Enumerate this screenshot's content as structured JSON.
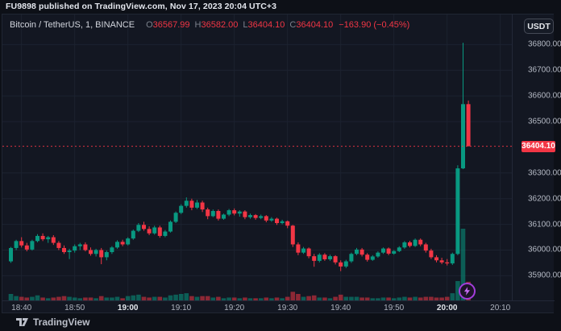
{
  "header": {
    "published_line": "FU9898 published on TradingView.com, Nov 17, 2023 20:04 UTC+3"
  },
  "chart": {
    "legend": {
      "symbol": "Bitcoin / TetherUS, 1, BINANCE",
      "ohlc": [
        {
          "k": "O",
          "v": "36567.99"
        },
        {
          "k": "H",
          "v": "36582.00"
        },
        {
          "k": "L",
          "v": "36404.10"
        },
        {
          "k": "C",
          "v": "36404.10"
        }
      ],
      "change": "−163.90 (−0.45%)"
    },
    "currency_button": "USDT",
    "last_price_label": "36404.10",
    "watermark": "TradingView",
    "icons": {
      "flash_marker": "lightning-bolt",
      "logo": "tradingview-logo"
    },
    "colors": {
      "up": "#089981",
      "down": "#f23645",
      "vol_up": "rgba(8,153,129,0.55)",
      "vol_down": "rgba(242,54,69,0.55)",
      "grid": "#1c2230",
      "price_line": "#f23645",
      "label_bg": "#f23645",
      "accent_purple": "#a33ddb"
    }
  },
  "chart_data": {
    "type": "candlestick",
    "title": "Bitcoin / TetherUS, 1, BINANCE",
    "interval": "1 minute",
    "ylim": [
      35804,
      36917
    ],
    "y_ticks": [
      {
        "value": 36800,
        "label": "36800.00"
      },
      {
        "value": 36700,
        "label": "36700.00"
      },
      {
        "value": 36600,
        "label": "36600.00"
      },
      {
        "value": 36500,
        "label": "36500.00"
      },
      {
        "value": 36300,
        "label": "36300.00"
      },
      {
        "value": 36200,
        "label": "36200.00"
      },
      {
        "value": 36100,
        "label": "36100.00"
      },
      {
        "value": 36000,
        "label": "36000.00"
      },
      {
        "value": 35900,
        "label": "35900.00"
      }
    ],
    "x_ticks": [
      {
        "label": "18:40",
        "bold": false
      },
      {
        "label": "18:50",
        "bold": false
      },
      {
        "label": "19:00",
        "bold": true
      },
      {
        "label": "19:10",
        "bold": false
      },
      {
        "label": "19:20",
        "bold": false
      },
      {
        "label": "19:30",
        "bold": false
      },
      {
        "label": "19:40",
        "bold": false
      },
      {
        "label": "19:50",
        "bold": false
      },
      {
        "label": "20:00",
        "bold": true
      },
      {
        "label": "20:10",
        "bold": false
      }
    ],
    "price_line": 36404.1,
    "volume_unit": "relative 0-100",
    "candles": [
      [
        "18:38",
        35956,
        36012,
        35950,
        36008,
        9
      ],
      [
        "18:39",
        36008,
        36040,
        36000,
        36035,
        6
      ],
      [
        "18:40",
        36035,
        36050,
        36010,
        36018,
        5
      ],
      [
        "18:41",
        36018,
        36028,
        35995,
        36002,
        4
      ],
      [
        "18:42",
        36002,
        36040,
        35998,
        36035,
        5
      ],
      [
        "18:43",
        36035,
        36062,
        36030,
        36055,
        7
      ],
      [
        "18:44",
        36055,
        36065,
        36035,
        36042,
        4
      ],
      [
        "18:45",
        36042,
        36055,
        36028,
        36050,
        3
      ],
      [
        "18:46",
        36050,
        36058,
        36020,
        36028,
        4
      ],
      [
        "18:47",
        36028,
        36035,
        36000,
        36008,
        5
      ],
      [
        "18:48",
        36008,
        36018,
        35985,
        35992,
        6
      ],
      [
        "18:49",
        35992,
        36005,
        35965,
        35998,
        5
      ],
      [
        "18:50",
        35998,
        36022,
        35990,
        36015,
        4
      ],
      [
        "18:51",
        36015,
        36028,
        36000,
        36022,
        3
      ],
      [
        "18:52",
        36022,
        36030,
        35995,
        36000,
        4
      ],
      [
        "18:53",
        36000,
        36010,
        35978,
        35985,
        4
      ],
      [
        "18:54",
        35985,
        36005,
        35975,
        36000,
        3
      ],
      [
        "18:55",
        36000,
        36008,
        35945,
        35972,
        6
      ],
      [
        "18:56",
        35972,
        35998,
        35960,
        35992,
        4
      ],
      [
        "18:57",
        35992,
        36015,
        35985,
        36010,
        4
      ],
      [
        "18:58",
        36010,
        36038,
        36005,
        36032,
        5
      ],
      [
        "18:59",
        36032,
        36040,
        36015,
        36022,
        3
      ],
      [
        "19:00",
        36022,
        36050,
        36018,
        36045,
        6
      ],
      [
        "19:01",
        36045,
        36080,
        36040,
        36075,
        7
      ],
      [
        "19:02",
        36075,
        36105,
        36070,
        36098,
        8
      ],
      [
        "19:03",
        36098,
        36110,
        36075,
        36082,
        5
      ],
      [
        "19:04",
        36082,
        36092,
        36058,
        36065,
        4
      ],
      [
        "19:05",
        36065,
        36095,
        36060,
        36088,
        5
      ],
      [
        "19:06",
        36088,
        36095,
        36048,
        36055,
        5
      ],
      [
        "19:07",
        36055,
        36078,
        36050,
        36072,
        4
      ],
      [
        "19:08",
        36072,
        36115,
        36068,
        36110,
        7
      ],
      [
        "19:09",
        36110,
        36150,
        36105,
        36145,
        8
      ],
      [
        "19:10",
        36145,
        36178,
        36140,
        36172,
        9
      ],
      [
        "19:11",
        36172,
        36205,
        36165,
        36192,
        10
      ],
      [
        "19:12",
        36192,
        36200,
        36155,
        36165,
        6
      ],
      [
        "19:13",
        36165,
        36195,
        36160,
        36185,
        5
      ],
      [
        "19:14",
        36185,
        36192,
        36148,
        36158,
        6
      ],
      [
        "19:15",
        36158,
        36165,
        36120,
        36132,
        6
      ],
      [
        "19:16",
        36132,
        36158,
        36128,
        36152,
        4
      ],
      [
        "19:17",
        36152,
        36158,
        36115,
        36122,
        5
      ],
      [
        "19:18",
        36122,
        36142,
        36118,
        36138,
        3
      ],
      [
        "19:19",
        36138,
        36160,
        36132,
        36155,
        4
      ],
      [
        "19:20",
        36155,
        36162,
        36135,
        36142,
        4
      ],
      [
        "19:21",
        36142,
        36155,
        36130,
        36150,
        3
      ],
      [
        "19:22",
        36150,
        36155,
        36120,
        36128,
        4
      ],
      [
        "19:23",
        36128,
        36142,
        36122,
        36136,
        3
      ],
      [
        "19:24",
        36136,
        36140,
        36118,
        36125,
        3
      ],
      [
        "19:25",
        36125,
        36138,
        36120,
        36132,
        3
      ],
      [
        "19:26",
        36132,
        36136,
        36108,
        36115,
        4
      ],
      [
        "19:27",
        36115,
        36128,
        36110,
        36122,
        3
      ],
      [
        "19:28",
        36122,
        36126,
        36098,
        36105,
        4
      ],
      [
        "19:29",
        36105,
        36118,
        36100,
        36112,
        3
      ],
      [
        "19:30",
        36112,
        36115,
        36085,
        36095,
        5
      ],
      [
        "19:31",
        36095,
        36098,
        36012,
        36022,
        12
      ],
      [
        "19:32",
        36022,
        36030,
        35980,
        35990,
        9
      ],
      [
        "19:33",
        35990,
        36012,
        35985,
        36006,
        5
      ],
      [
        "19:34",
        36006,
        36010,
        35968,
        35976,
        6
      ],
      [
        "19:35",
        35976,
        35985,
        35935,
        35958,
        7
      ],
      [
        "19:36",
        35958,
        35988,
        35952,
        35982,
        4
      ],
      [
        "19:37",
        35982,
        35988,
        35958,
        35964,
        4
      ],
      [
        "19:38",
        35964,
        35982,
        35958,
        35976,
        3
      ],
      [
        "19:39",
        35976,
        35980,
        35944,
        35952,
        5
      ],
      [
        "19:40",
        35952,
        35960,
        35918,
        35936,
        8
      ],
      [
        "19:41",
        35936,
        35962,
        35930,
        35956,
        5
      ],
      [
        "19:42",
        35956,
        35990,
        35950,
        35985,
        5
      ],
      [
        "19:43",
        35985,
        36008,
        35980,
        36002,
        5
      ],
      [
        "19:44",
        36002,
        36008,
        35975,
        35982,
        4
      ],
      [
        "19:45",
        35982,
        35988,
        35955,
        35962,
        4
      ],
      [
        "19:46",
        35962,
        35980,
        35958,
        35975,
        3
      ],
      [
        "19:47",
        35975,
        35995,
        35970,
        35990,
        3
      ],
      [
        "19:48",
        35990,
        36010,
        35985,
        36006,
        4
      ],
      [
        "19:49",
        36006,
        36010,
        35980,
        35986,
        4
      ],
      [
        "19:50",
        35986,
        36000,
        35982,
        35996,
        3
      ],
      [
        "19:51",
        35996,
        36015,
        35992,
        36010,
        4
      ],
      [
        "19:52",
        36010,
        36035,
        36005,
        36030,
        5
      ],
      [
        "19:53",
        36030,
        36036,
        36010,
        36016,
        4
      ],
      [
        "19:54",
        36016,
        36045,
        36012,
        36040,
        5
      ],
      [
        "19:55",
        36040,
        36045,
        36015,
        36022,
        4
      ],
      [
        "19:56",
        36022,
        36028,
        35990,
        35998,
        5
      ],
      [
        "19:57",
        35998,
        36005,
        35965,
        35972,
        5
      ],
      [
        "19:58",
        35972,
        35980,
        35952,
        35960,
        4
      ],
      [
        "19:59",
        35960,
        35970,
        35945,
        35952,
        4
      ],
      [
        "20:00",
        35952,
        35965,
        35940,
        35948,
        5
      ],
      [
        "20:01",
        35948,
        35990,
        35942,
        35985,
        10
      ],
      [
        "20:02",
        35985,
        36330,
        35980,
        36318,
        27
      ],
      [
        "20:03",
        36318,
        36807,
        36315,
        36568,
        100
      ],
      [
        "20:04",
        36568,
        36582,
        36404.1,
        36404.1,
        26
      ]
    ]
  }
}
